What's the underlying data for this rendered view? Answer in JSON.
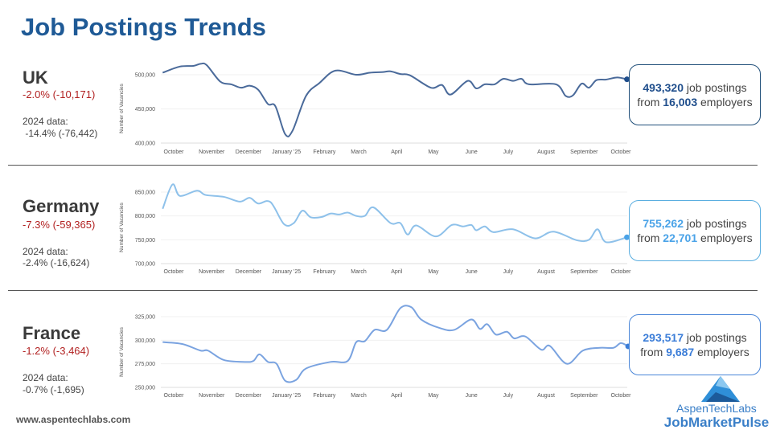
{
  "title": "Job Postings Trends",
  "footer": "www.aspentechlabs.com",
  "logo": {
    "line1": "AspenTechLabs",
    "line2": "JobMarketPulse"
  },
  "colors": {
    "title": "#1f5a96",
    "negative": "#b22222"
  },
  "countries": [
    {
      "name": "UK",
      "change": "-2.0% (-10,171)",
      "prev_label": "2024 data:",
      "prev_change": " -14.4% (-76,442)",
      "postings": "493,320",
      "postings_suffix": " job postings",
      "employers_prefix": "from ",
      "employers": "16,003",
      "employers_suffix": " employers",
      "line_color": "#4a6a9a",
      "accent": "#1f4e8c"
    },
    {
      "name": "Germany",
      "change": "-7.3% (-59,365)",
      "prev_label": "2024 data:",
      "prev_change": "-2.4% (-16,624)",
      "postings": "755,262",
      "postings_suffix": " job postings",
      "employers_prefix": "from ",
      "employers": "22,701",
      "employers_suffix": " employers",
      "line_color": "#8ec1ea",
      "accent": "#4aa3e8"
    },
    {
      "name": "France",
      "change": "-1.2% (-3,464)",
      "prev_label": "2024 data:",
      "prev_change": "-0.7% (-1,695)",
      "postings": "293,517",
      "postings_suffix": " job postings",
      "employers_prefix": "from ",
      "employers": "9,687",
      "employers_suffix": " employers",
      "line_color": "#7aa3e0",
      "accent": "#3b7dd8"
    }
  ],
  "chart_data": [
    {
      "type": "line",
      "title": "",
      "ylabel": "Number of Vacancies",
      "grid": true,
      "ylim": [
        400000,
        500000
      ],
      "yticks": [
        400000,
        450000,
        500000
      ],
      "ytick_labels": [
        "400,000",
        "450,000",
        "500,000"
      ],
      "xtick_labels": [
        "October",
        "November",
        "December",
        "January '25",
        "February",
        "March",
        "April",
        "May",
        "June",
        "July",
        "August",
        "September",
        "October"
      ],
      "xticks": [
        "2024-10-01",
        "2024-11-01",
        "2024-12-01",
        "2025-01-01",
        "2025-02-01",
        "2025-03-01",
        "2025-04-01",
        "2025-05-01",
        "2025-06-01",
        "2025-07-01",
        "2025-08-01",
        "2025-09-01",
        "2025-10-01"
      ],
      "series": [
        {
          "x": [
            "2024-09-22",
            "2024-10-06",
            "2024-10-17",
            "2024-10-23",
            "2024-10-28",
            "2024-11-08",
            "2024-11-17",
            "2024-11-25",
            "2024-12-02",
            "2024-12-09",
            "2024-12-17",
            "2024-12-23",
            "2024-12-31",
            "2025-01-06",
            "2025-01-17",
            "2025-01-28",
            "2025-02-10",
            "2025-02-27",
            "2025-03-10",
            "2025-03-21",
            "2025-03-27",
            "2025-04-04",
            "2025-04-12",
            "2025-04-29",
            "2025-05-08",
            "2025-05-15",
            "2025-05-29",
            "2025-06-05",
            "2025-06-12",
            "2025-06-20",
            "2025-06-27",
            "2025-07-05",
            "2025-07-12",
            "2025-07-18",
            "2025-08-09",
            "2025-08-17",
            "2025-08-23",
            "2025-08-30",
            "2025-09-05",
            "2025-09-11",
            "2025-09-19",
            "2025-09-28",
            "2025-10-06"
          ],
          "y": [
            503000,
            512000,
            513000,
            516000,
            514000,
            490000,
            486000,
            481000,
            484000,
            478000,
            457000,
            454000,
            413000,
            418000,
            469000,
            488000,
            506000,
            500000,
            503000,
            504000,
            505000,
            501000,
            499000,
            481000,
            485000,
            471000,
            491000,
            480000,
            486000,
            486000,
            494000,
            491000,
            494000,
            486000,
            486000,
            469000,
            470000,
            487000,
            481000,
            492000,
            493000,
            496000,
            493320
          ]
        }
      ]
    },
    {
      "type": "line",
      "title": "",
      "ylabel": "Number of Vacancies",
      "grid": true,
      "ylim": [
        700000,
        850000
      ],
      "yticks": [
        700000,
        750000,
        800000,
        850000
      ],
      "ytick_labels": [
        "700,000",
        "750,000",
        "800,000",
        "850,000"
      ],
      "xtick_labels": [
        "October",
        "November",
        "December",
        "January '25",
        "February",
        "March",
        "April",
        "May",
        "June",
        "July",
        "August",
        "September",
        "October"
      ],
      "xticks": [
        "2024-10-01",
        "2024-11-01",
        "2024-12-01",
        "2025-01-01",
        "2025-02-01",
        "2025-03-01",
        "2025-04-01",
        "2025-05-01",
        "2025-06-01",
        "2025-07-01",
        "2025-08-01",
        "2025-09-01",
        "2025-10-01"
      ],
      "series": [
        {
          "x": [
            "2024-09-22",
            "2024-09-30",
            "2024-10-06",
            "2024-10-20",
            "2024-10-27",
            "2024-11-11",
            "2024-11-24",
            "2024-12-02",
            "2024-12-09",
            "2024-12-19",
            "2024-12-30",
            "2025-01-07",
            "2025-01-14",
            "2025-01-21",
            "2025-01-30",
            "2025-02-06",
            "2025-02-13",
            "2025-02-20",
            "2025-02-27",
            "2025-03-06",
            "2025-03-13",
            "2025-03-27",
            "2025-04-04",
            "2025-04-10",
            "2025-04-17",
            "2025-05-03",
            "2025-05-16",
            "2025-05-25",
            "2025-06-01",
            "2025-06-05",
            "2025-06-12",
            "2025-06-19",
            "2025-07-05",
            "2025-07-23",
            "2025-08-07",
            "2025-08-26",
            "2025-09-05",
            "2025-09-12",
            "2025-09-19",
            "2025-10-06"
          ],
          "y": [
            815000,
            866000,
            842000,
            853000,
            844000,
            840000,
            830000,
            838000,
            826000,
            829000,
            783000,
            785000,
            811000,
            797000,
            798000,
            805000,
            803000,
            807000,
            800000,
            800000,
            818000,
            785000,
            785000,
            761000,
            780000,
            757000,
            781000,
            778000,
            781000,
            770000,
            778000,
            766000,
            772000,
            753000,
            767000,
            749000,
            750000,
            772000,
            745000,
            755262
          ]
        }
      ]
    },
    {
      "type": "line",
      "title": "",
      "ylabel": "Number of Vacancies",
      "grid": true,
      "ylim": [
        250000,
        325000
      ],
      "yticks": [
        250000,
        275000,
        300000,
        325000
      ],
      "ytick_labels": [
        "250,000",
        "275,000",
        "300,000",
        "325,000"
      ],
      "xtick_labels": [
        "October",
        "November",
        "December",
        "January '25",
        "February",
        "March",
        "April",
        "May",
        "June",
        "July",
        "August",
        "September",
        "October"
      ],
      "xticks": [
        "2024-10-01",
        "2024-11-01",
        "2024-12-01",
        "2025-01-01",
        "2025-02-01",
        "2025-03-01",
        "2025-04-01",
        "2025-05-01",
        "2025-06-01",
        "2025-07-01",
        "2025-08-01",
        "2025-09-01",
        "2025-10-01"
      ],
      "series": [
        {
          "x": [
            "2024-09-22",
            "2024-10-08",
            "2024-10-23",
            "2024-10-29",
            "2024-11-11",
            "2024-11-28",
            "2024-12-05",
            "2024-12-10",
            "2024-12-17",
            "2024-12-24",
            "2024-12-31",
            "2025-01-09",
            "2025-01-17",
            "2025-02-06",
            "2025-02-20",
            "2025-02-27",
            "2025-03-06",
            "2025-03-14",
            "2025-03-24",
            "2025-04-04",
            "2025-04-13",
            "2025-04-21",
            "2025-05-06",
            "2025-05-18",
            "2025-06-01",
            "2025-06-08",
            "2025-06-14",
            "2025-06-21",
            "2025-06-30",
            "2025-07-06",
            "2025-07-15",
            "2025-07-28",
            "2025-08-04",
            "2025-08-18",
            "2025-08-31",
            "2025-09-14",
            "2025-09-25",
            "2025-10-01",
            "2025-10-07"
          ],
          "y": [
            298000,
            296000,
            289000,
            289000,
            279000,
            277000,
            278000,
            285000,
            277000,
            275000,
            257000,
            258000,
            270000,
            277000,
            278000,
            298000,
            299000,
            311000,
            311000,
            334000,
            335000,
            322000,
            313000,
            311000,
            322000,
            312000,
            317000,
            306000,
            309000,
            302000,
            304000,
            290000,
            294000,
            275000,
            289000,
            292000,
            292000,
            297000,
            293517
          ]
        }
      ]
    }
  ]
}
